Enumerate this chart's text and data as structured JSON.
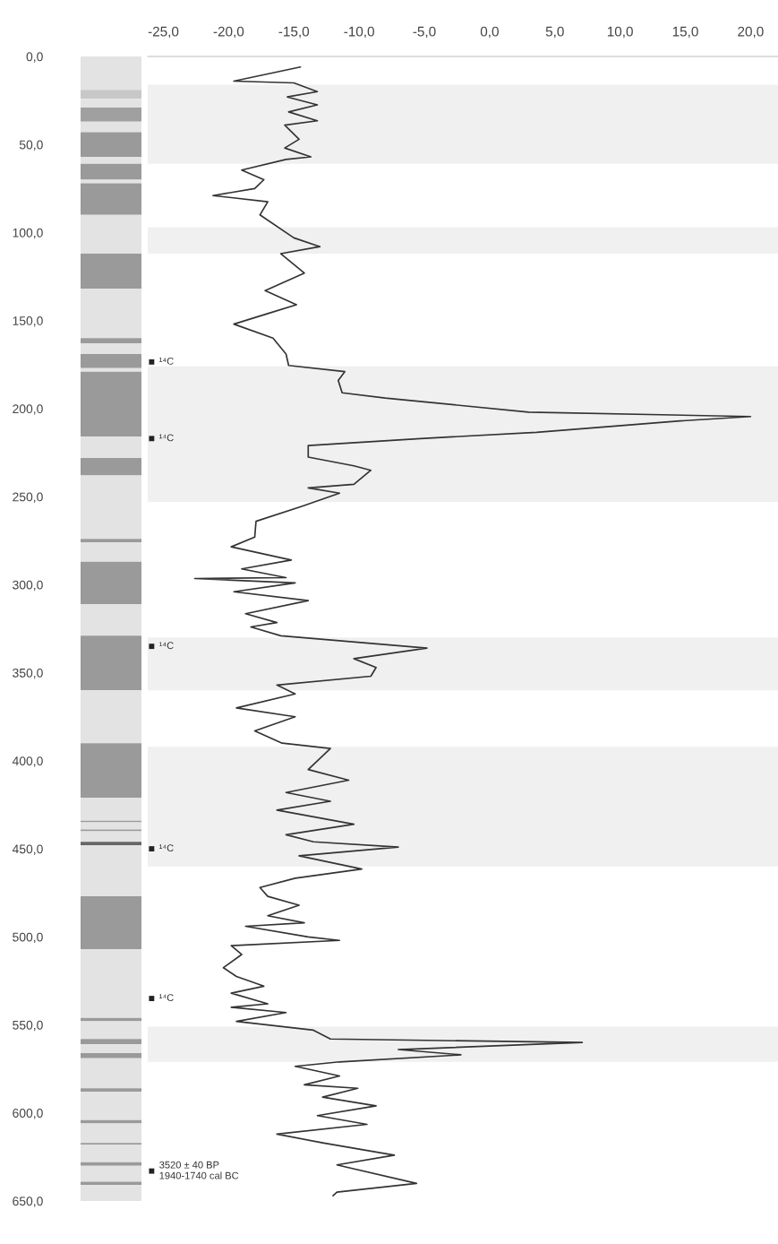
{
  "chart_data": [
    {
      "type": "bar",
      "stacked": true,
      "categories": [
        null
      ],
      "tick_labels": "y",
      "ylim": [
        650,
        0
      ],
      "yticks": [
        {
          "value": 0,
          "label": "0,0"
        },
        {
          "value": 50,
          "label": "50,0"
        },
        {
          "value": 100,
          "label": "100,0"
        },
        {
          "value": 150,
          "label": "150,0"
        },
        {
          "value": 200,
          "label": "200,0"
        },
        {
          "value": 250,
          "label": "250,0"
        },
        {
          "value": 300,
          "label": "300,0"
        },
        {
          "value": 350,
          "label": "350,0"
        },
        {
          "value": 400,
          "label": "400,0"
        },
        {
          "value": 450,
          "label": "450,0"
        },
        {
          "value": 500,
          "label": "500,0"
        },
        {
          "value": 550,
          "label": "550,0"
        },
        {
          "value": 600,
          "label": "600,0"
        },
        {
          "value": 650,
          "label": "650,0"
        }
      ],
      "series": [
        {
          "color": "#e3e3e3",
          "values": [
            19
          ]
        },
        {
          "color": "#c8c8c8",
          "values": [
            5
          ]
        },
        {
          "color": "#e3e3e3",
          "values": [
            5
          ]
        },
        {
          "color": "#a0a0a0",
          "values": [
            8
          ]
        },
        {
          "color": "#e3e3e3",
          "values": [
            6
          ]
        },
        {
          "color": "#9a9a9a",
          "values": [
            14
          ]
        },
        {
          "color": "#e3e3e3",
          "values": [
            4
          ]
        },
        {
          "color": "#9a9a9a",
          "values": [
            9
          ]
        },
        {
          "color": "#e3e3e3",
          "values": [
            2
          ]
        },
        {
          "color": "#9a9a9a",
          "values": [
            18
          ]
        },
        {
          "color": "#e3e3e3",
          "values": [
            22
          ]
        },
        {
          "color": "#9a9a9a",
          "values": [
            20
          ]
        },
        {
          "color": "#e3e3e3",
          "values": [
            28
          ]
        },
        {
          "color": "#9a9a9a",
          "values": [
            3
          ]
        },
        {
          "color": "#e3e3e3",
          "values": [
            6
          ]
        },
        {
          "color": "#9a9a9a",
          "values": [
            8
          ]
        },
        {
          "color": "#e3e3e3",
          "values": [
            2
          ]
        },
        {
          "color": "#9a9a9a",
          "values": [
            37
          ]
        },
        {
          "color": "#e3e3e3",
          "values": [
            12
          ]
        },
        {
          "color": "#9a9a9a",
          "values": [
            10
          ]
        },
        {
          "color": "#e3e3e3",
          "values": [
            36
          ]
        },
        {
          "color": "#9a9a9a",
          "values": [
            2
          ]
        },
        {
          "color": "#e3e3e3",
          "values": [
            11
          ]
        },
        {
          "color": "#9a9a9a",
          "values": [
            24
          ]
        },
        {
          "color": "#e3e3e3",
          "values": [
            18
          ]
        },
        {
          "color": "#9a9a9a",
          "values": [
            31
          ]
        },
        {
          "color": "#e3e3e3",
          "values": [
            30
          ]
        },
        {
          "color": "#9a9a9a",
          "values": [
            31
          ]
        },
        {
          "color": "#e3e3e3",
          "values": [
            13
          ]
        },
        {
          "color": "#9a9a9a",
          "values": [
            1
          ]
        },
        {
          "color": "#e3e3e3",
          "values": [
            4
          ]
        },
        {
          "color": "#9a9a9a",
          "values": [
            1
          ]
        },
        {
          "color": "#e3e3e3",
          "values": [
            6
          ]
        },
        {
          "color": "#666666",
          "values": [
            2
          ]
        },
        {
          "color": "#e3e3e3",
          "values": [
            29
          ]
        },
        {
          "color": "#9a9a9a",
          "values": [
            30
          ]
        },
        {
          "color": "#e3e3e3",
          "values": [
            39
          ]
        },
        {
          "color": "#9a9a9a",
          "values": [
            2
          ]
        },
        {
          "color": "#e3e3e3",
          "values": [
            10
          ]
        },
        {
          "color": "#9a9a9a",
          "values": [
            3
          ]
        },
        {
          "color": "#e3e3e3",
          "values": [
            5
          ]
        },
        {
          "color": "#9a9a9a",
          "values": [
            3
          ]
        },
        {
          "color": "#e3e3e3",
          "values": [
            17
          ]
        },
        {
          "color": "#9a9a9a",
          "values": [
            2
          ]
        },
        {
          "color": "#e3e3e3",
          "values": [
            16
          ]
        },
        {
          "color": "#9a9a9a",
          "values": [
            2
          ]
        },
        {
          "color": "#e3e3e3",
          "values": [
            11
          ]
        },
        {
          "color": "#9a9a9a",
          "values": [
            1
          ]
        },
        {
          "color": "#e3e3e3",
          "values": [
            10
          ]
        },
        {
          "color": "#9a9a9a",
          "values": [
            2
          ]
        },
        {
          "color": "#e3e3e3",
          "values": [
            9
          ]
        },
        {
          "color": "#9a9a9a",
          "values": [
            2
          ]
        },
        {
          "color": "#e3e3e3",
          "values": [
            9
          ]
        }
      ]
    },
    {
      "type": "line",
      "tick_labels": "x",
      "xlim": [
        -26.2,
        22.1
      ],
      "ylim": [
        650,
        0
      ],
      "xticks": [
        {
          "value": -25,
          "label": "-25,0"
        },
        {
          "value": -20,
          "label": "-20,0"
        },
        {
          "value": -15,
          "label": "-15,0"
        },
        {
          "value": -10,
          "label": "-10,0"
        },
        {
          "value": -5,
          "label": "-5,0"
        },
        {
          "value": 0,
          "label": "0,0"
        },
        {
          "value": 5,
          "label": "5,0"
        },
        {
          "value": 10,
          "label": "10,0"
        },
        {
          "value": 15,
          "label": "15,0"
        },
        {
          "value": 20,
          "label": "20,0"
        }
      ],
      "bands": [
        {
          "axis": "y",
          "from": 16,
          "to": 61,
          "color": "#f0f0f0"
        },
        {
          "axis": "y",
          "from": 97,
          "to": 112,
          "color": "#f0f0f0"
        },
        {
          "axis": "y",
          "from": 176,
          "to": 253,
          "color": "#f0f0f0"
        },
        {
          "axis": "y",
          "from": 330,
          "to": 360,
          "color": "#f0f0f0"
        },
        {
          "axis": "y",
          "from": 392,
          "to": 460,
          "color": "#f0f0f0"
        },
        {
          "axis": "y",
          "from": 551,
          "to": 571,
          "color": "#f0f0f0"
        }
      ],
      "series": [
        {
          "type": "scatter",
          "marker": "square",
          "color": "#222222",
          "x": [
            -25.9,
            -25.9,
            -25.9,
            -25.9,
            -25.9,
            -25.9
          ],
          "values": [
            173.5,
            217,
            335,
            450,
            535,
            633
          ],
          "value_labels": [
            "¹⁴C",
            "¹⁴C",
            "¹⁴C",
            "¹⁴C",
            "¹⁴C",
            "3520 ± 40 BP\n1940-1740 cal BC"
          ]
        },
        {
          "color": "#333333",
          "x": [
            -14.5,
            -19.6,
            -15,
            -13.2,
            -15.5,
            -13.2,
            -15.4,
            -13.2,
            -15.7,
            -14.6,
            -15.7,
            -13.7,
            -15.6,
            -19,
            -17.3,
            -18,
            -21.2,
            -17,
            -17.6,
            -15,
            -13,
            -16,
            -14.2,
            -17.2,
            -14.8,
            -17,
            -19.6,
            -16.6,
            -15.6,
            -15.4,
            -11.1,
            -11.6,
            -11.3,
            -8,
            3,
            20,
            14.6,
            3.6,
            -5.3,
            -13.9,
            -13.9,
            -10.4,
            -9.1,
            -10.4,
            -13.9,
            -11.5,
            -14.4,
            -17.9,
            -18,
            -19.8,
            -15.2,
            -19,
            -15.6,
            -22.6,
            -14.9,
            -19.6,
            -13.9,
            -18.7,
            -16.3,
            -18.3,
            -16,
            -4.8,
            -10.4,
            -8.7,
            -9.1,
            -16.3,
            -14.9,
            -19.4,
            -14.9,
            -18,
            -15.9,
            -12.2,
            -13.9,
            -10.8,
            -15.6,
            -12.2,
            -16.3,
            -10.4,
            -15.6,
            -13.5,
            -7,
            -14.6,
            -9.8,
            -14.9,
            -17.6,
            -17,
            -14.6,
            -17,
            -14.2,
            -18.7,
            -13.9,
            -11.5,
            -19.8,
            -19,
            -20.4,
            -19.4,
            -17.3,
            -19.8,
            -17,
            -19.8,
            -15.6,
            -19.4,
            -13.5,
            -12.2,
            7.1,
            -7,
            -2.2,
            -11.5,
            -14.9,
            -11.5,
            -14.2,
            -10.1,
            -12.8,
            -8.7,
            -13.2,
            -9.4,
            -16.3,
            -12.8,
            -7.3,
            -11.7,
            -5.6,
            -11.7,
            -12
          ],
          "values": [
            6,
            14,
            15,
            20,
            23,
            27.5,
            31.5,
            36.5,
            39,
            47,
            52,
            57,
            58.5,
            64.5,
            70,
            75,
            79,
            82.5,
            90,
            103,
            108,
            112,
            123,
            133,
            141,
            146,
            152,
            160,
            169,
            175.5,
            179,
            184,
            191,
            194,
            202,
            204.5,
            207,
            213.5,
            217,
            221,
            227.5,
            232.5,
            235,
            243,
            245,
            248,
            255.5,
            264,
            273,
            278.5,
            286,
            291,
            296,
            296.5,
            299,
            304,
            309,
            316.5,
            321.5,
            324,
            329,
            336,
            342,
            347,
            352,
            357,
            362,
            370,
            375,
            383,
            390,
            393,
            405,
            411,
            418,
            423,
            428,
            436,
            442,
            446,
            449,
            454,
            461.5,
            466.7,
            472,
            477,
            482,
            488,
            492,
            494,
            500,
            502,
            505,
            510,
            517.5,
            522.5,
            528,
            532,
            538,
            540,
            543,
            548,
            553,
            558,
            560,
            564,
            567,
            571,
            573.5,
            579,
            584,
            586,
            591,
            596,
            601.5,
            606.5,
            612,
            617,
            624,
            629.5,
            640,
            645,
            647
          ]
        }
      ]
    }
  ]
}
